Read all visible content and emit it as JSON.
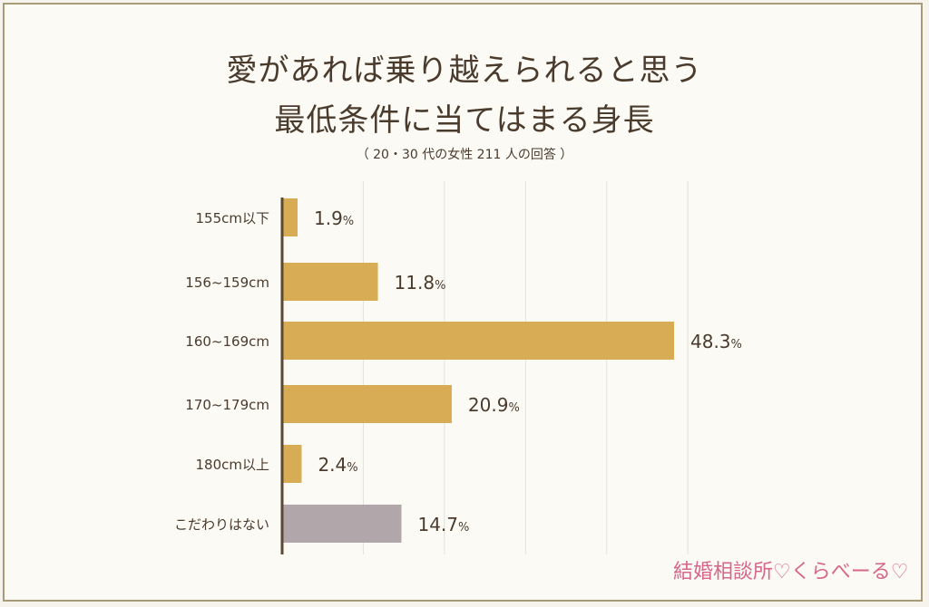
{
  "title": {
    "line1": "愛があれば乗り越えられると思う",
    "line2": "最低条件に当てはまる身長",
    "subtitle": "（ 20・30 代の女性 211 人の回答 ）"
  },
  "watermark": "結婚相談所♡くらべーる♡",
  "colors": {
    "bar": "#d8ac55",
    "bar_muted": "#b1a7aa",
    "axis": "#5a4a33",
    "grid": "#e5e1d8",
    "text": "#4a3b2d",
    "watermark": "#d7668c"
  },
  "chart_data": {
    "type": "bar",
    "orientation": "horizontal",
    "categories": [
      "155cm以下",
      "156~159cm",
      "160~169cm",
      "170~179cm",
      "180cm以上",
      "こだわりはない"
    ],
    "values": [
      1.9,
      11.8,
      48.3,
      20.9,
      2.4,
      14.7
    ],
    "value_labels": [
      "1.9",
      "11.8",
      "48.3",
      "20.9",
      "2.4",
      "14.7"
    ],
    "unit": "%",
    "muted_categories": [
      "こだわりはない"
    ],
    "xlim": [
      0,
      60
    ],
    "grid": true
  }
}
